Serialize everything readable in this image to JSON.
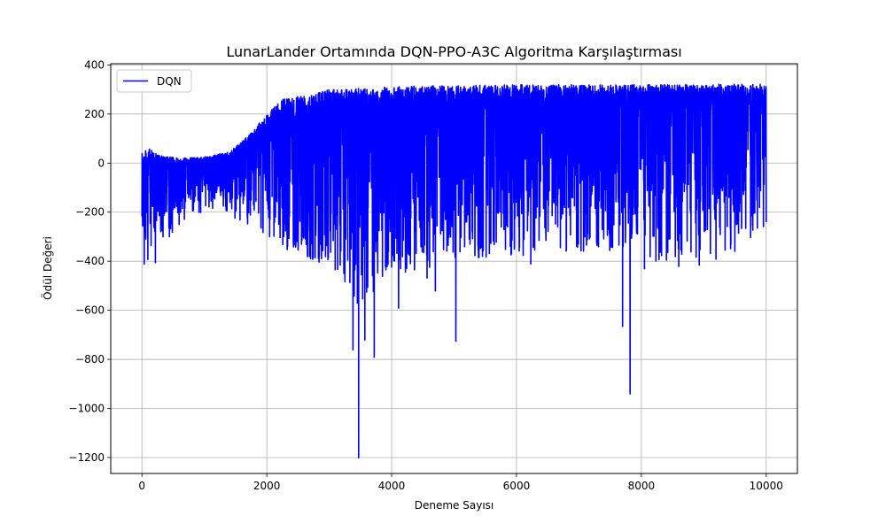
{
  "chart_data": {
    "type": "line",
    "title": "LunarLander Ortamında DQN-PPO-A3C Algoritma Karşılaştırması",
    "xlabel": "Deneme Sayısı",
    "ylabel": "Ödül Değeri",
    "xlim": [
      -500,
      10500
    ],
    "ylim": [
      -1265,
      405
    ],
    "xticks": [
      0,
      2000,
      4000,
      6000,
      8000,
      10000
    ],
    "yticks": [
      400,
      200,
      0,
      -200,
      -400,
      -600,
      -800,
      -1000,
      -1200
    ],
    "xtick_labels": [
      "0",
      "2000",
      "4000",
      "6000",
      "8000",
      "10000"
    ],
    "ytick_labels": [
      "400",
      "200",
      "0",
      "−200",
      "−400",
      "−600",
      "−800",
      "−1000",
      "−1200"
    ],
    "grid": true,
    "legend_position": "top-left",
    "series": [
      {
        "name": "DQN",
        "color": "#0000ff",
        "envelope": {
          "x": [
            0,
            100,
            300,
            600,
            1000,
            1400,
            1700,
            2000,
            2300,
            2600,
            3000,
            3500,
            4000,
            4500,
            5000,
            6000,
            7000,
            8000,
            9000,
            10000
          ],
          "upper": [
            40,
            60,
            30,
            20,
            25,
            45,
            110,
            200,
            270,
            285,
            300,
            305,
            310,
            315,
            315,
            320,
            320,
            320,
            320,
            325
          ],
          "typical_low": [
            -330,
            -300,
            -240,
            -170,
            -120,
            -120,
            -150,
            -200,
            -250,
            -300,
            -350,
            -380,
            -320,
            -280,
            -260,
            -230,
            -220,
            -210,
            -200,
            -150
          ],
          "lower": [
            -500,
            -480,
            -360,
            -260,
            -200,
            -210,
            -260,
            -300,
            -350,
            -380,
            -420,
            -600,
            -430,
            -480,
            -400,
            -380,
            -360,
            -400,
            -420,
            -300
          ]
        },
        "spikes": [
          {
            "x": 3380,
            "y": -760
          },
          {
            "x": 3470,
            "y": -1200
          },
          {
            "x": 3570,
            "y": -720
          },
          {
            "x": 3720,
            "y": -790
          },
          {
            "x": 3900,
            "y": -420
          },
          {
            "x": 4110,
            "y": -590
          },
          {
            "x": 4700,
            "y": -520
          },
          {
            "x": 5030,
            "y": -725
          },
          {
            "x": 6230,
            "y": -410
          },
          {
            "x": 7700,
            "y": -665
          },
          {
            "x": 7820,
            "y": -940
          },
          {
            "x": 8050,
            "y": -430
          },
          {
            "x": 8600,
            "y": -420
          },
          {
            "x": 9850,
            "y": -150
          }
        ]
      }
    ]
  }
}
